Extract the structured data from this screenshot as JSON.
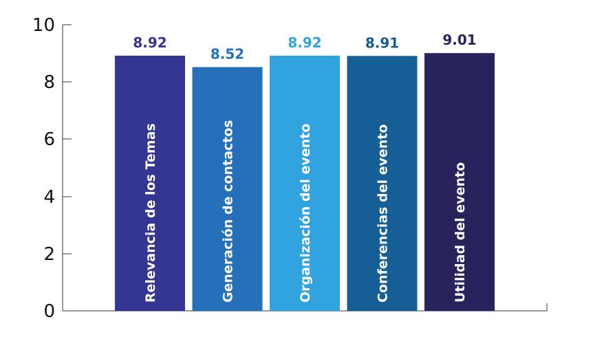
{
  "chart_data": {
    "type": "bar",
    "categories": [
      "Relevancia de los Temas",
      "Generación de contactos",
      "Organización del evento",
      "Conferencias del evento",
      "Utilidad del evento"
    ],
    "values": [
      8.92,
      8.52,
      8.92,
      8.91,
      9.01
    ],
    "value_labels": [
      "8.92",
      "8.52",
      "8.92",
      "8.91",
      "9.01"
    ],
    "colors": [
      "#353593",
      "#2670b9",
      "#31a4df",
      "#155f96",
      "#29235d"
    ],
    "yticks": [
      "0",
      "2",
      "4",
      "6",
      "8",
      "10"
    ],
    "ylim": [
      0,
      10
    ],
    "grid": false,
    "legend": "none"
  }
}
